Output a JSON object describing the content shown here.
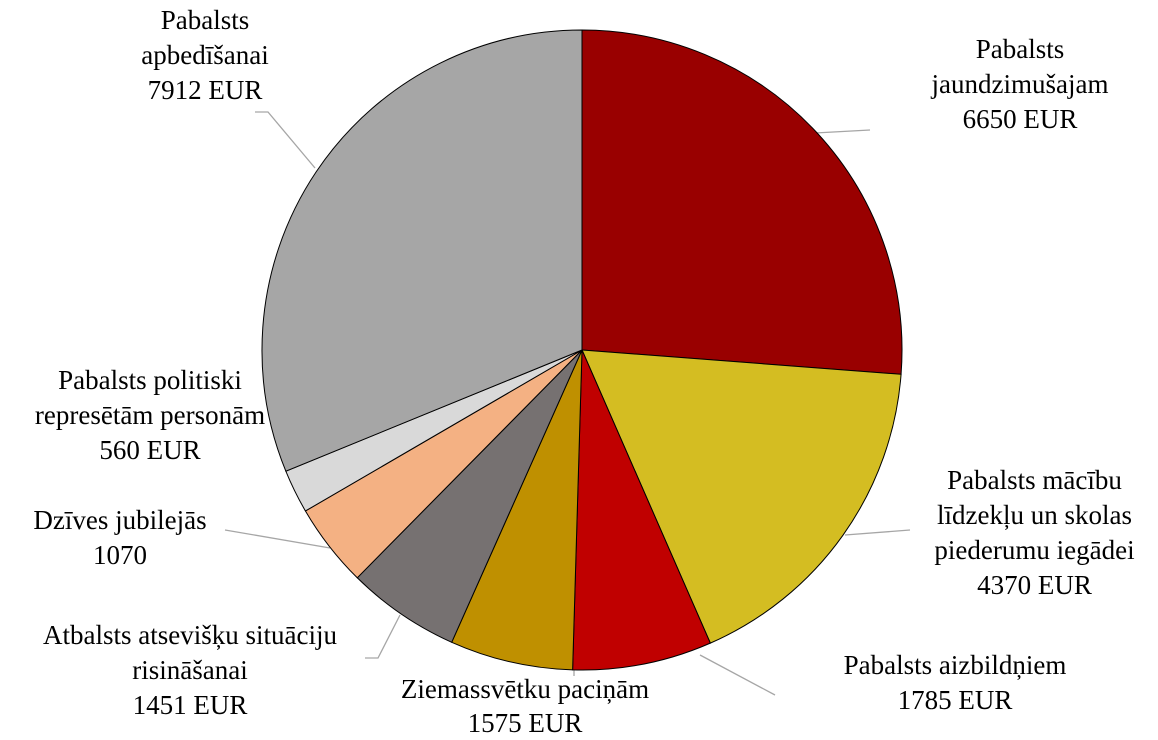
{
  "chart_data": {
    "type": "pie",
    "categories": [
      "Pabalsts jaundzimušajam",
      "Pabalsts mācību līdzekļu un skolas piederumu iegādei",
      "Pabalsts aizbildņiem",
      "Ziemassvētku paciņām",
      "Atbalsts atsevišķu situāciju risināšanai",
      "Dzīves jubilejās",
      "Pabalsts politiski represētām personām",
      "Pabalsts apbedīšanai"
    ],
    "values": [
      6650,
      4370,
      1785,
      1575,
      1451,
      1070,
      560,
      7912
    ],
    "value_labels": [
      "6650 EUR",
      "4370 EUR",
      "1785 EUR",
      "1575 EUR",
      "1451 EUR",
      "1070",
      "560 EUR",
      "7912 EUR"
    ],
    "colors": [
      "#990000",
      "#d4bd22",
      "#c00000",
      "#bf9000",
      "#767171",
      "#f4b183",
      "#d9d9d9",
      "#a6a6a6"
    ]
  }
}
